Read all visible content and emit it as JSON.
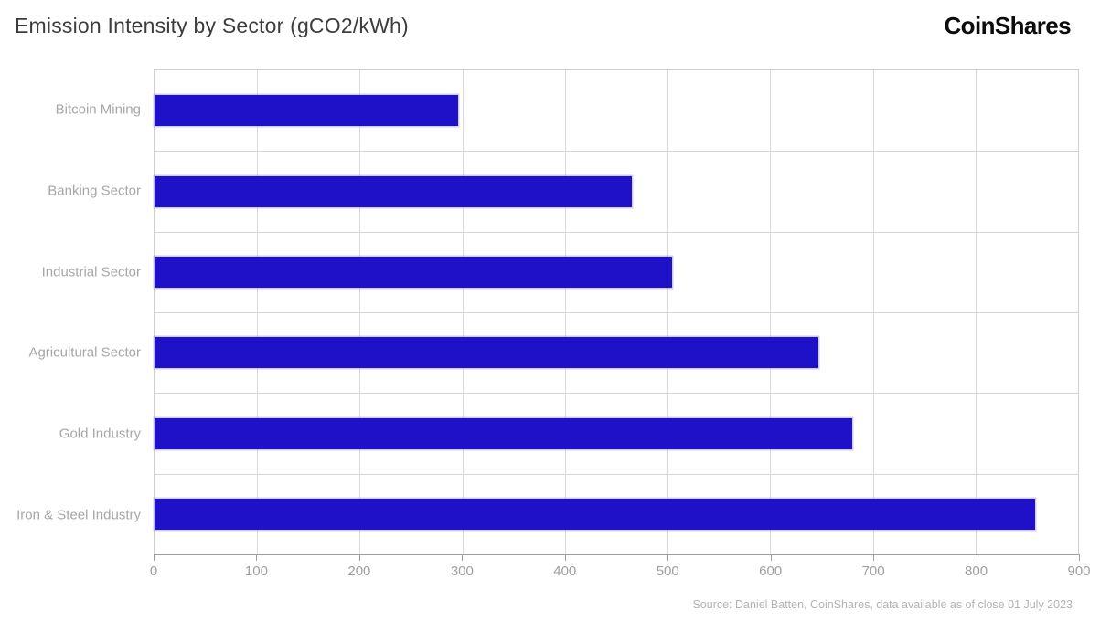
{
  "header": {
    "title": "Emission Intensity by Sector (gCO2/kWh)",
    "logo": "CoinShares"
  },
  "footer": {
    "source": "Source: Daniel Batten, CoinShares, data available as of close 01 July 2023"
  },
  "chart_data": {
    "type": "bar",
    "orientation": "horizontal",
    "title": "Emission Intensity by Sector (gCO2/kWh)",
    "categories": [
      "Bitcoin Mining",
      "Banking Sector",
      "Industrial Sector",
      "Agricultural Sector",
      "Gold Industry",
      "Iron & Steel Industry"
    ],
    "values": [
      296,
      465,
      504,
      647,
      680,
      858
    ],
    "xlabel": "",
    "ylabel": "",
    "xlim": [
      0,
      900
    ],
    "xticks": [
      0,
      100,
      200,
      300,
      400,
      500,
      600,
      700,
      800,
      900
    ],
    "grid": true,
    "legend": "none",
    "bar_color": "#1e11c8",
    "grid_color": "#d9d9d9",
    "label_color": "#a7a7a7"
  }
}
